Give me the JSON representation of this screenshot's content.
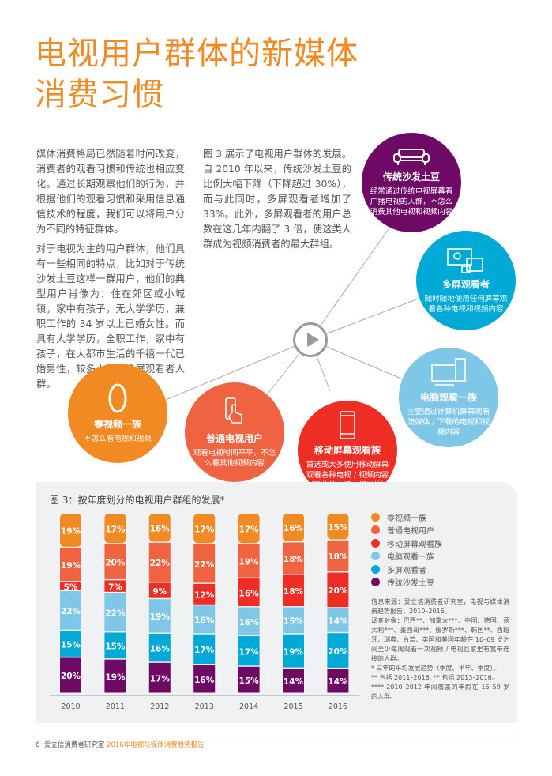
{
  "title_lines": [
    "电视用户群体的新媒体",
    "消费习惯"
  ],
  "paragraphs": [
    "媒体消费格局已然随着时间改变，消费者的观看习惯和传统也相应变化。通过长期观察他们的行为，并根据他们的观看习惯和采用信息通信技术的程度，我们可以将用户分为不同的特征群体。",
    "对于电视为主的用户群体，他们具有一些相同的特点，比如对于传统沙发土豆这样一群用户，他们的典型用户肖像为：住在郊区或小城镇，家中有孩子，无大学学历，兼职工作的 34 岁以上已婚女性。而具有大学学历，全职工作，家中有孩子，在大都市生活的千禧一代已婚男性，较多人属于多屏观看者人群。",
    "图 3 展示了电视用户群体的发展。自 2010 年以来，传统沙发土豆的比例大幅下降（下降超过 30%），而与此同时，多屏观看者增加了 33%。此外，多屏观看者的用户总数在这几年内翻了 3 倍，使这类人群成为视频消费者的最大群组。"
  ],
  "segments": [
    {
      "name": "传统沙发土豆",
      "desc": "经常通过传统电视屏幕看广播电视的人群，不怎么消费其他电视和视频内容",
      "color": "#6e0a66",
      "icon": "sofa-icon"
    },
    {
      "name": "多屏观看者",
      "desc": "随时随地使用任何屏幕观看各种电视和视频内容",
      "color": "#00a9d6",
      "icon": "multi-screen-icon"
    },
    {
      "name": "电脑观看一族",
      "desc": "主要通过计算机屏幕观看流媒体 / 下载的电视和视频内容",
      "color": "#7fc7e6",
      "icon": "desktop-computer-icon"
    },
    {
      "name": "零视频一族",
      "desc": "不怎么看电视和视频",
      "color": "#f28a24",
      "icon": "zero-icon"
    },
    {
      "name": "普通电视用户",
      "desc": "观看电视时间平平，不怎么看其他视频内容",
      "color": "#f06341",
      "icon": "remote-control-icon"
    },
    {
      "name": "移动屏幕观看族",
      "desc": "首选或大多使用移动屏幕观看各种电视 / 视频内容（除传统广播电视以外）",
      "color": "#ee2d24",
      "icon": "smartphone-icon"
    }
  ],
  "chart_data": {
    "type": "bar",
    "stacked": true,
    "title": "图 3：按年度划分的电视用户群组的发展*",
    "categories": [
      "2010",
      "2011",
      "2012",
      "2013",
      "2014",
      "2015",
      "2016"
    ],
    "series": [
      {
        "name": "传统沙发土豆",
        "color": "#6e0a66",
        "values": [
          20,
          19,
          17,
          16,
          15,
          14,
          14
        ]
      },
      {
        "name": "多屏观看者",
        "color": "#00a9d6",
        "values": [
          15,
          15,
          16,
          17,
          17,
          19,
          20
        ]
      },
      {
        "name": "电脑观看一族",
        "color": "#7fc7e6",
        "values": [
          22,
          22,
          19,
          16,
          16,
          15,
          14
        ]
      },
      {
        "name": "移动屏幕观看族",
        "color": "#ee2d24",
        "values": [
          5,
          7,
          9,
          12,
          16,
          18,
          20
        ]
      },
      {
        "name": "普通电视用户",
        "color": "#f06341",
        "values": [
          19,
          20,
          22,
          22,
          19,
          18,
          18
        ]
      },
      {
        "name": "零视频一族",
        "color": "#f28a24",
        "values": [
          19,
          17,
          16,
          17,
          17,
          16,
          15
        ]
      }
    ],
    "legend_order": [
      "零视频一族",
      "普通电视用户",
      "移动屏幕观看族",
      "电脑观看一族",
      "多屏观看者",
      "传统沙发土豆"
    ],
    "legend_placement": "right",
    "unit": "%"
  },
  "notes": [
    "信息来源：爱立信消费者研究室，电视与媒体消费趋势报告，2010–2016。",
    "调查对象：巴西**、加拿大***、中国、德国、意大利***、墨西哥***、俄罗斯***、韩国**、西班牙、瑞典、台湾、英国和美国年龄在 16–69 岁之间至少每周观看一次视频 / 电视且家里有宽带连接的人群。",
    "* 三年的平均发展趋势（季度、半年、季度）。",
    "** 包括 2011–2016. ** 包括 2013–2016。",
    "**** 2010–2012 年间覆盖的年龄在 16–59 岁的人群。"
  ],
  "footer": {
    "page": "6",
    "org": "爱立信消费者研究室",
    "report": "2016年电视与媒体消费趋势报告"
  }
}
